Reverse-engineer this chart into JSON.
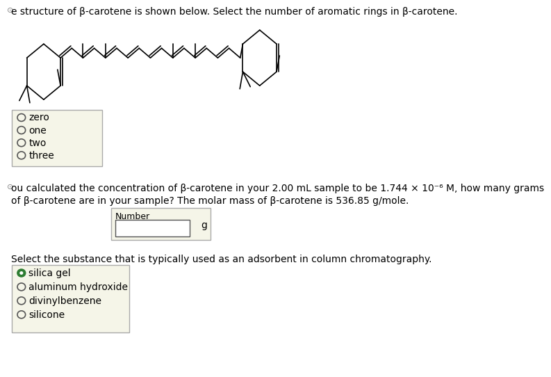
{
  "title_text": "e structure of β-carotene is shown below. Select the number of aromatic rings in β-carotene.",
  "title_prefix": "⊙",
  "q2_prefix": "⊙",
  "q2_text": "ou calculated the concentration of β-carotene in your 2.00 mL sample to be 1.744 × 10⁻⁶ M, how many grams\nof β-carotene are in your sample? The molar mass of β-carotene is 536.85 g/mole.",
  "q3_text": "Select the substance that is typically used as an adsorbent in column chromatography.",
  "radio_options_1": [
    "zero",
    "one",
    "two",
    "three"
  ],
  "radio_options_2": [
    "silica gel",
    "aluminum hydroxide",
    "divinylbenzene",
    "silicone"
  ],
  "radio_selected_1": -1,
  "radio_selected_2": 0,
  "number_label": "Number",
  "unit_label": "g",
  "bg_color": "#ffffff",
  "box_bg": "#f5f5e8",
  "text_color": "#000000",
  "font_size": 10,
  "small_font": 9
}
